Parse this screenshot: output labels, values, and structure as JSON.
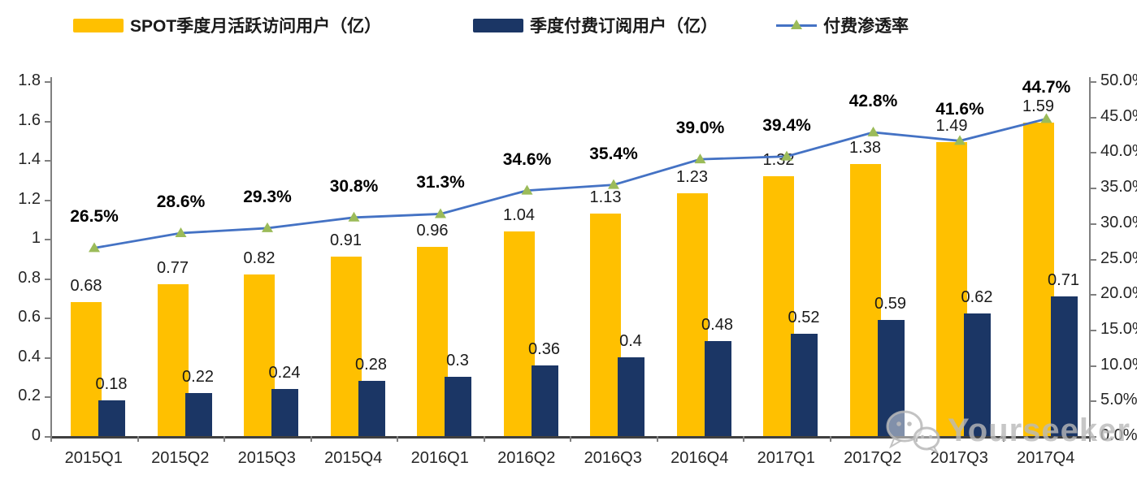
{
  "legend": [
    {
      "label": "SPOT季度月活跃访问用户（亿）",
      "swatch": "bar",
      "color": "#FFC000"
    },
    {
      "label": "季度付费订阅用户（亿）",
      "swatch": "bar",
      "color": "#1B3665"
    },
    {
      "label": "付费渗透率",
      "swatch": "line-triangle-marker",
      "color": "#4472C4",
      "marker_color": "#9BBB59"
    }
  ],
  "chart_data": {
    "type": "bar",
    "subtype": "combo-bar-line",
    "categories": [
      "2015Q1",
      "2015Q2",
      "2015Q3",
      "2015Q4",
      "2016Q1",
      "2016Q2",
      "2016Q3",
      "2016Q4",
      "2017Q1",
      "2017Q2",
      "2017Q3",
      "2017Q4"
    ],
    "series": [
      {
        "name": "SPOT季度月活跃访问用户（亿）",
        "type": "bar",
        "axis": "left",
        "color": "#FFC000",
        "values": [
          0.68,
          0.77,
          0.82,
          0.91,
          0.96,
          1.04,
          1.13,
          1.23,
          1.32,
          1.38,
          1.49,
          1.59
        ],
        "labels": [
          "0.68",
          "0.77",
          "0.82",
          "0.91",
          "0.96",
          "1.04",
          "1.13",
          "1.23",
          "1.32",
          "1.38",
          "1.49",
          "1.59"
        ]
      },
      {
        "name": "季度付费订阅用户（亿）",
        "type": "bar",
        "axis": "left",
        "color": "#1B3665",
        "values": [
          0.18,
          0.22,
          0.24,
          0.28,
          0.3,
          0.36,
          0.4,
          0.48,
          0.52,
          0.59,
          0.62,
          0.71
        ],
        "labels": [
          "0.18",
          "0.22",
          "0.24",
          "0.28",
          "0.3",
          "0.36",
          "0.4",
          "0.48",
          "0.52",
          "0.59",
          "0.62",
          "0.71"
        ]
      },
      {
        "name": "付费渗透率",
        "type": "line",
        "axis": "right",
        "color": "#4472C4",
        "marker": "triangle",
        "marker_color": "#9BBB59",
        "values": [
          26.5,
          28.6,
          29.3,
          30.8,
          31.3,
          34.6,
          35.4,
          39.0,
          39.4,
          42.8,
          41.6,
          44.7
        ],
        "labels": [
          "26.5%",
          "28.6%",
          "29.3%",
          "30.8%",
          "31.3%",
          "34.6%",
          "35.4%",
          "39.0%",
          "39.4%",
          "42.8%",
          "41.6%",
          "44.7%"
        ]
      }
    ],
    "left_axis": {
      "min": 0,
      "max": 1.8,
      "step": 0.2,
      "ticks": [
        "1.8",
        "1.6",
        "1.4",
        "1.2",
        "1",
        "0.8",
        "0.6",
        "0.4",
        "0.2",
        "0"
      ]
    },
    "right_axis": {
      "min": 0,
      "max": 50,
      "step": 5,
      "ticks": [
        "50.0%",
        "45.0%",
        "40.0%",
        "35.0%",
        "30.0%",
        "25.0%",
        "20.0%",
        "15.0%",
        "10.0%",
        "5.0%",
        "0.0%"
      ]
    },
    "grid": false,
    "legend_position": "top",
    "title": "",
    "xlabel": "",
    "ylabel": ""
  },
  "watermark": {
    "text": "Yourseeker",
    "icon": "wechat-chat-bubbles-icon"
  }
}
